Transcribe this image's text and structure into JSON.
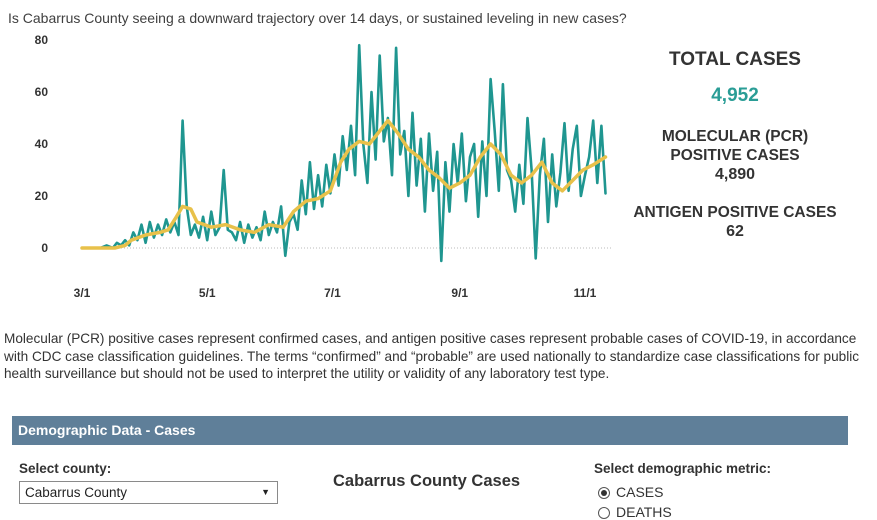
{
  "question": "Is Cabarrus County seeing a downward trajectory over 14 days, or sustained leveling in new cases?",
  "stats": {
    "total_label": "TOTAL CASES",
    "total_value": "4,952",
    "pcr_label_line1": "MOLECULAR (PCR)",
    "pcr_label_line2": "POSITIVE CASES",
    "pcr_value": "4,890",
    "antigen_label": "ANTIGEN POSITIVE CASES",
    "antigen_value": "62"
  },
  "note": "Molecular (PCR) positive cases represent confirmed cases, and antigen positive cases represent probable cases of COVID-19, in accordance with CDC case classification guidelines. The terms “confirmed” and “probable” are used nationally to standardize case classifications for public health surveillance but should not be used to interpret the utility or validity of any laboratory test type.",
  "demographic": {
    "header": "Demographic Data  -  Cases",
    "county_label": "Select county:",
    "county_value": "Cabarrus County",
    "chart_title": "Cabarrus County Cases",
    "metric_label": "Select demographic metric:",
    "metric_options": [
      "CASES",
      "DEATHS"
    ],
    "metric_selected": "CASES"
  },
  "colors": {
    "daily_cases": "#1f9690",
    "average": "#e8c14a",
    "header_bg": "#5f7f99",
    "total_value": "#2a9d96"
  },
  "chart_data": {
    "type": "line",
    "title": "",
    "xlabel": "",
    "ylabel": "",
    "ylim": [
      0,
      80
    ],
    "yticks": [
      0,
      20,
      40,
      60,
      80
    ],
    "xticks": [
      "3/1",
      "5/1",
      "7/1",
      "9/1",
      "11/1"
    ],
    "x_range": [
      "2020-03-01",
      "2020-11-01"
    ],
    "zero_line": "dotted",
    "grid": false,
    "legend": "none",
    "series": [
      {
        "kind": "daily",
        "color": "#1f9690",
        "points": [
          [
            "2020-03-01",
            0
          ],
          [
            "2020-03-05",
            0
          ],
          [
            "2020-03-10",
            0
          ],
          [
            "2020-03-13",
            1
          ],
          [
            "2020-03-16",
            0
          ],
          [
            "2020-03-18",
            2
          ],
          [
            "2020-03-20",
            1
          ],
          [
            "2020-03-22",
            3
          ],
          [
            "2020-03-24",
            1
          ],
          [
            "2020-03-26",
            6
          ],
          [
            "2020-03-28",
            3
          ],
          [
            "2020-03-30",
            9
          ],
          [
            "2020-04-01",
            2
          ],
          [
            "2020-04-03",
            10
          ],
          [
            "2020-04-05",
            4
          ],
          [
            "2020-04-07",
            9
          ],
          [
            "2020-04-09",
            5
          ],
          [
            "2020-04-11",
            11
          ],
          [
            "2020-04-13",
            6
          ],
          [
            "2020-04-15",
            10
          ],
          [
            "2020-04-17",
            5
          ],
          [
            "2020-04-19",
            49
          ],
          [
            "2020-04-21",
            16
          ],
          [
            "2020-04-23",
            5
          ],
          [
            "2020-04-25",
            9
          ],
          [
            "2020-04-27",
            4
          ],
          [
            "2020-04-29",
            12
          ],
          [
            "2020-05-01",
            3
          ],
          [
            "2020-05-03",
            14
          ],
          [
            "2020-05-05",
            5
          ],
          [
            "2020-05-07",
            8
          ],
          [
            "2020-05-09",
            30
          ],
          [
            "2020-05-11",
            7
          ],
          [
            "2020-05-13",
            6
          ],
          [
            "2020-05-15",
            3
          ],
          [
            "2020-05-17",
            10
          ],
          [
            "2020-05-19",
            2
          ],
          [
            "2020-05-21",
            9
          ],
          [
            "2020-05-23",
            4
          ],
          [
            "2020-05-25",
            8
          ],
          [
            "2020-05-27",
            3
          ],
          [
            "2020-05-29",
            14
          ],
          [
            "2020-05-31",
            5
          ],
          [
            "2020-06-02",
            10
          ],
          [
            "2020-06-04",
            6
          ],
          [
            "2020-06-06",
            16
          ],
          [
            "2020-06-08",
            -3
          ],
          [
            "2020-06-10",
            10
          ],
          [
            "2020-06-12",
            13
          ],
          [
            "2020-06-14",
            7
          ],
          [
            "2020-06-16",
            26
          ],
          [
            "2020-06-18",
            13
          ],
          [
            "2020-06-20",
            33
          ],
          [
            "2020-06-22",
            15
          ],
          [
            "2020-06-24",
            28
          ],
          [
            "2020-06-26",
            16
          ],
          [
            "2020-06-28",
            32
          ],
          [
            "2020-06-30",
            21
          ],
          [
            "2020-07-02",
            36
          ],
          [
            "2020-07-04",
            24
          ],
          [
            "2020-07-06",
            43
          ],
          [
            "2020-07-08",
            30
          ],
          [
            "2020-07-10",
            47
          ],
          [
            "2020-07-12",
            28
          ],
          [
            "2020-07-14",
            78
          ],
          [
            "2020-07-16",
            40
          ],
          [
            "2020-07-18",
            25
          ],
          [
            "2020-07-20",
            60
          ],
          [
            "2020-07-22",
            34
          ],
          [
            "2020-07-24",
            74
          ],
          [
            "2020-07-26",
            41
          ],
          [
            "2020-07-28",
            50
          ],
          [
            "2020-07-30",
            28
          ],
          [
            "2020-08-01",
            77
          ],
          [
            "2020-08-03",
            36
          ],
          [
            "2020-08-05",
            45
          ],
          [
            "2020-08-07",
            20
          ],
          [
            "2020-08-09",
            52
          ],
          [
            "2020-08-11",
            24
          ],
          [
            "2020-08-13",
            42
          ],
          [
            "2020-08-15",
            14
          ],
          [
            "2020-08-17",
            44
          ],
          [
            "2020-08-19",
            22
          ],
          [
            "2020-08-21",
            37
          ],
          [
            "2020-08-23",
            -5
          ],
          [
            "2020-08-25",
            33
          ],
          [
            "2020-08-27",
            14
          ],
          [
            "2020-08-29",
            40
          ],
          [
            "2020-08-31",
            25
          ],
          [
            "2020-09-02",
            44
          ],
          [
            "2020-09-04",
            18
          ],
          [
            "2020-09-06",
            35
          ],
          [
            "2020-09-08",
            40
          ],
          [
            "2020-09-10",
            12
          ],
          [
            "2020-09-12",
            41
          ],
          [
            "2020-09-14",
            20
          ],
          [
            "2020-09-16",
            65
          ],
          [
            "2020-09-18",
            45
          ],
          [
            "2020-09-20",
            22
          ],
          [
            "2020-09-22",
            63
          ],
          [
            "2020-09-24",
            30
          ],
          [
            "2020-09-26",
            26
          ],
          [
            "2020-09-28",
            14
          ],
          [
            "2020-09-30",
            32
          ],
          [
            "2020-10-02",
            17
          ],
          [
            "2020-10-04",
            50
          ],
          [
            "2020-10-06",
            30
          ],
          [
            "2020-10-08",
            -4
          ],
          [
            "2020-10-10",
            28
          ],
          [
            "2020-10-12",
            42
          ],
          [
            "2020-10-14",
            10
          ],
          [
            "2020-10-16",
            36
          ],
          [
            "2020-10-18",
            16
          ],
          [
            "2020-10-20",
            29
          ],
          [
            "2020-10-22",
            48
          ],
          [
            "2020-10-24",
            22
          ],
          [
            "2020-10-26",
            38
          ],
          [
            "2020-10-28",
            47
          ],
          [
            "2020-10-30",
            20
          ],
          [
            "2020-11-01",
            28
          ],
          [
            "2020-11-03",
            35
          ],
          [
            "2020-11-05",
            49
          ],
          [
            "2020-11-07",
            25
          ],
          [
            "2020-11-09",
            47
          ],
          [
            "2020-11-11",
            21
          ]
        ]
      },
      {
        "kind": "average",
        "color": "#e8c14a",
        "points": [
          [
            "2020-03-01",
            0
          ],
          [
            "2020-03-10",
            0
          ],
          [
            "2020-03-17",
            0
          ],
          [
            "2020-03-22",
            1
          ],
          [
            "2020-03-25",
            3
          ],
          [
            "2020-04-01",
            5
          ],
          [
            "2020-04-08",
            6
          ],
          [
            "2020-04-12",
            7
          ],
          [
            "2020-04-16",
            12
          ],
          [
            "2020-04-19",
            16
          ],
          [
            "2020-04-23",
            15
          ],
          [
            "2020-04-26",
            10
          ],
          [
            "2020-05-03",
            8
          ],
          [
            "2020-05-10",
            9
          ],
          [
            "2020-05-17",
            7
          ],
          [
            "2020-05-24",
            6
          ],
          [
            "2020-05-31",
            9
          ],
          [
            "2020-06-07",
            8
          ],
          [
            "2020-06-12",
            14
          ],
          [
            "2020-06-18",
            18
          ],
          [
            "2020-06-24",
            19
          ],
          [
            "2020-06-30",
            22
          ],
          [
            "2020-07-05",
            33
          ],
          [
            "2020-07-09",
            38
          ],
          [
            "2020-07-14",
            41
          ],
          [
            "2020-07-19",
            40
          ],
          [
            "2020-07-24",
            45
          ],
          [
            "2020-07-28",
            49
          ],
          [
            "2020-08-02",
            44
          ],
          [
            "2020-08-07",
            38
          ],
          [
            "2020-08-12",
            35
          ],
          [
            "2020-08-17",
            30
          ],
          [
            "2020-08-22",
            27
          ],
          [
            "2020-08-27",
            23
          ],
          [
            "2020-09-01",
            25
          ],
          [
            "2020-09-06",
            28
          ],
          [
            "2020-09-11",
            35
          ],
          [
            "2020-09-16",
            40
          ],
          [
            "2020-09-21",
            36
          ],
          [
            "2020-09-26",
            28
          ],
          [
            "2020-10-01",
            25
          ],
          [
            "2020-10-06",
            28
          ],
          [
            "2020-10-11",
            33
          ],
          [
            "2020-10-16",
            25
          ],
          [
            "2020-10-21",
            22
          ],
          [
            "2020-10-26",
            26
          ],
          [
            "2020-10-31",
            30
          ],
          [
            "2020-11-05",
            32
          ],
          [
            "2020-11-11",
            35
          ]
        ]
      }
    ]
  }
}
